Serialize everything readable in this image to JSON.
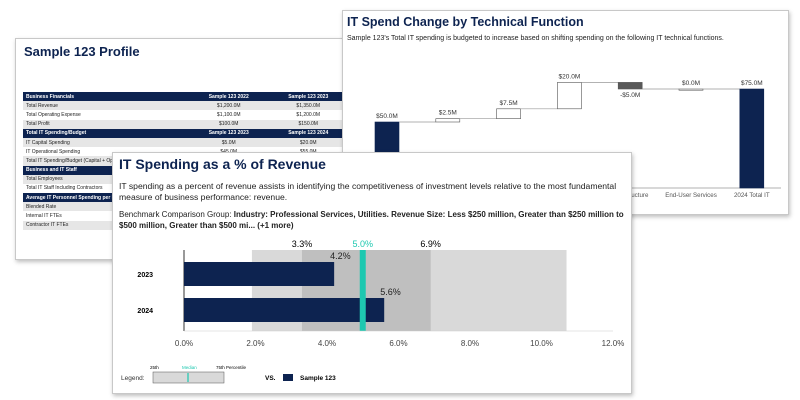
{
  "profile": {
    "title": "Sample 123 Profile",
    "rows": [
      {
        "type": "header",
        "label": "Business Financials",
        "c1": "Sample 123 2022",
        "c2": "Sample 123 2023"
      },
      {
        "type": "alt",
        "label": "Total Revenue",
        "c1": "$1,200.0M",
        "c2": "$1,350.0M"
      },
      {
        "type": "row",
        "label": "Total Operating Expense",
        "c1": "$1,100.0M",
        "c2": "$1,200.0M"
      },
      {
        "type": "alt",
        "label": "Total Profit",
        "c1": "$100.0M",
        "c2": "$150.0M"
      },
      {
        "type": "header",
        "label": "Total IT Spending/Budget",
        "c1": "Sample 123 2023",
        "c2": "Sample 123 2024"
      },
      {
        "type": "alt",
        "label": "IT Capital Spending",
        "c1": "$5.0M",
        "c2": "$20.0M"
      },
      {
        "type": "row",
        "label": "IT Operational Spending",
        "c1": "$45.0M",
        "c2": "$55.0M"
      },
      {
        "type": "alt",
        "label": "Total IT Spending/Budget (Capital + Op",
        "c1": "",
        "c2": ""
      },
      {
        "type": "header",
        "label": "Business and IT Staff",
        "c1": "",
        "c2": ""
      },
      {
        "type": "alt",
        "label": "Total Employees",
        "c1": "",
        "c2": ""
      },
      {
        "type": "row",
        "label": "Total IT Staff Including Contractors",
        "c1": "",
        "c2": ""
      },
      {
        "type": "header",
        "label": "Average IT Personnel Spending per IT",
        "c1": "",
        "c2": ""
      },
      {
        "type": "alt",
        "label": "Blended Rate",
        "c1": "",
        "c2": ""
      },
      {
        "type": "row",
        "label": "Internal IT FTEs",
        "c1": "",
        "c2": ""
      },
      {
        "type": "alt",
        "label": "Contractor IT FTEs",
        "c1": "",
        "c2": ""
      }
    ]
  },
  "waterfall": {
    "title": "IT Spend Change by Technical Function",
    "description": "Sample 123's Total IT spending is budgeted to increase based on shifting spending on the following IT technical functions."
  },
  "bullet": {
    "title": "IT Spending as a % of Revenue",
    "description": "IT spending as a percent of revenue assists in identifying the competitiveness of investment levels relative to the most fundamental measure of business performance: revenue.",
    "bench_prefix": "Benchmark Comparison Group: ",
    "bench_bold": "Industry: Professional Services, Utilities. Revenue Size: Less $250 million, Greater than $250 million to $500 million, Greater than $500 mi... (+1 more)",
    "legend": {
      "label": "Legend:",
      "p25": "25th",
      "median": "Median",
      "p75": "75th Percentile",
      "vs": "VS.",
      "series": "Sample 123"
    }
  },
  "colors": {
    "navy": "#0d2350",
    "median": "#1ec8b0",
    "band_outer": "#d9d9d9",
    "band_inner": "#bfbfbf",
    "decrease": "#595959"
  },
  "chart_data": [
    {
      "type": "bar",
      "subtype": "waterfall",
      "categories": [
        "",
        "",
        "",
        "",
        "Infrastructure",
        "End-User Services",
        "2024 Total IT"
      ],
      "values": [
        50.0,
        2.5,
        7.5,
        20.0,
        -5.0,
        0.0,
        75.0
      ],
      "kinds": [
        "total",
        "delta",
        "delta",
        "delta",
        "delta",
        "delta",
        "total"
      ],
      "data_labels": [
        "$50.0M",
        "$2.5M",
        "$7.5M",
        "$20.0M",
        "-$5.0M",
        "$0.0M",
        "$75.0M"
      ],
      "unit": "$M"
    },
    {
      "type": "bar",
      "subtype": "bullet",
      "orientation": "horizontal",
      "categories": [
        "2023",
        "2024"
      ],
      "series": [
        {
          "name": "Sample 123",
          "values": [
            4.2,
            5.6
          ]
        }
      ],
      "data_labels": [
        "4.2%",
        "5.6%"
      ],
      "benchmark": {
        "p25": 3.3,
        "median": 5.0,
        "p75": 6.9,
        "range_low": 1.9,
        "range_high": 10.7,
        "p25_label": "3.3%",
        "median_label": "5.0%",
        "p75_label": "6.9%"
      },
      "xlim": [
        0,
        12
      ],
      "xticks": [
        "0.0%",
        "2.0%",
        "4.0%",
        "6.0%",
        "8.0%",
        "10.0%",
        "12.0%"
      ],
      "grid": false
    }
  ]
}
